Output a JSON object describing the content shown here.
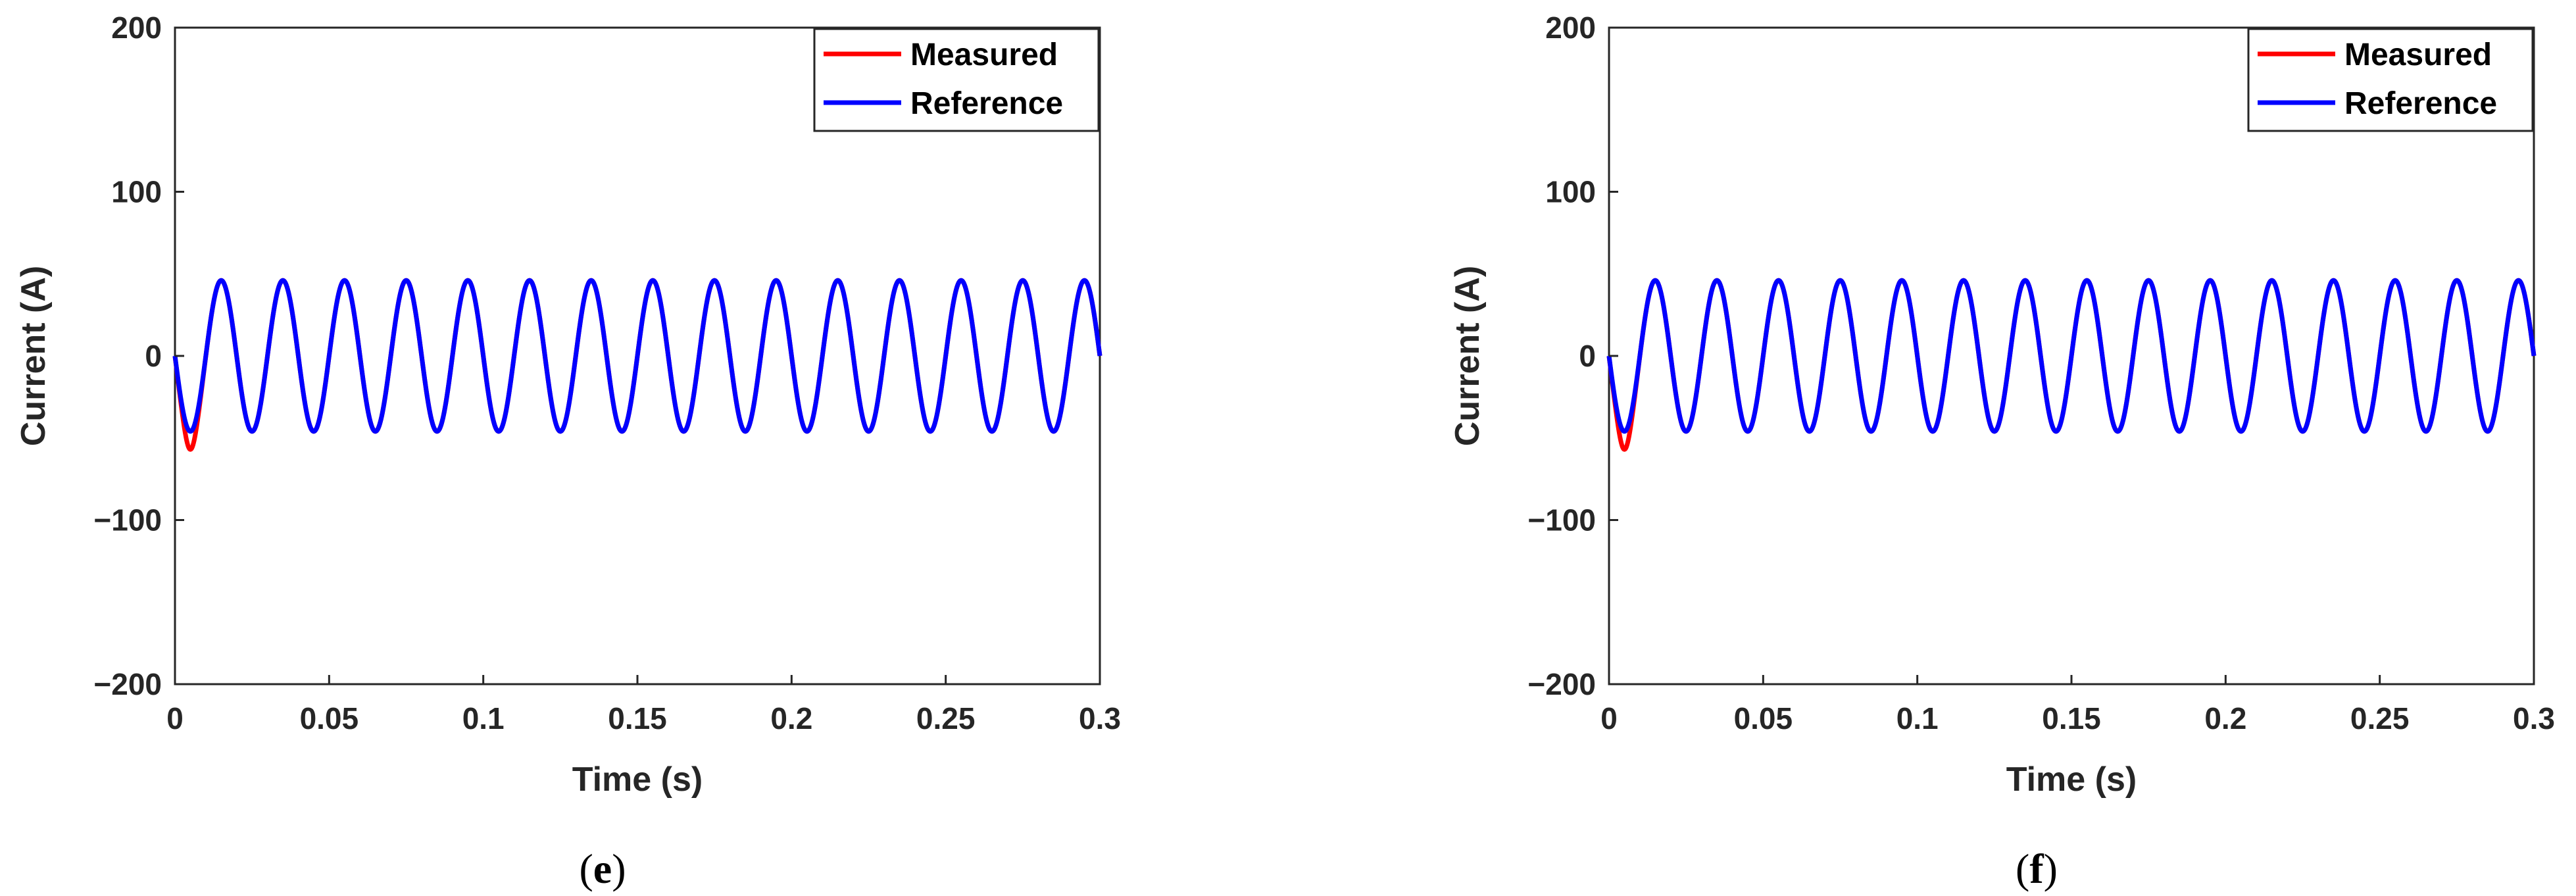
{
  "chart_data": [
    {
      "type": "line",
      "panel_label": "e",
      "xlabel": "Time (s)",
      "ylabel": "Current (A)",
      "xlim": [
        0,
        0.3
      ],
      "ylim": [
        -200,
        200
      ],
      "xticks": [
        0,
        0.05,
        0.1,
        0.15,
        0.2,
        0.25,
        0.3
      ],
      "xtick_labels": [
        "0",
        "0.05",
        "0.1",
        "0.15",
        "0.2",
        "0.25",
        "0.3"
      ],
      "yticks": [
        200,
        100,
        0,
        -100,
        -200
      ],
      "ytick_labels": [
        "200",
        "100",
        "0",
        "−100",
        "−200"
      ],
      "grid": false,
      "legend_position": "top-right",
      "series": [
        {
          "name": "Measured",
          "color": "#ff0000",
          "amplitude": 46,
          "frequency_hz": 50,
          "transient": {
            "time": 0.005,
            "value": -57
          }
        },
        {
          "name": "Reference",
          "color": "#0000ff",
          "amplitude": 46,
          "frequency_hz": 50
        }
      ]
    },
    {
      "type": "line",
      "panel_label": "f",
      "xlabel": "Time (s)",
      "ylabel": "Current (A)",
      "xlim": [
        0,
        0.3
      ],
      "ylim": [
        -200,
        200
      ],
      "xticks": [
        0,
        0.05,
        0.1,
        0.15,
        0.2,
        0.25,
        0.3
      ],
      "xtick_labels": [
        "0",
        "0.05",
        "0.1",
        "0.15",
        "0.2",
        "0.25",
        "0.3"
      ],
      "yticks": [
        200,
        100,
        0,
        -100,
        -200
      ],
      "ytick_labels": [
        "200",
        "100",
        "0",
        "−100",
        "−200"
      ],
      "grid": false,
      "legend_position": "top-right",
      "series": [
        {
          "name": "Measured",
          "color": "#ff0000",
          "amplitude": 46,
          "frequency_hz": 50,
          "transient": {
            "time": 0.005,
            "value": -57
          }
        },
        {
          "name": "Reference",
          "color": "#0000ff",
          "amplitude": 46,
          "frequency_hz": 50
        }
      ]
    }
  ]
}
